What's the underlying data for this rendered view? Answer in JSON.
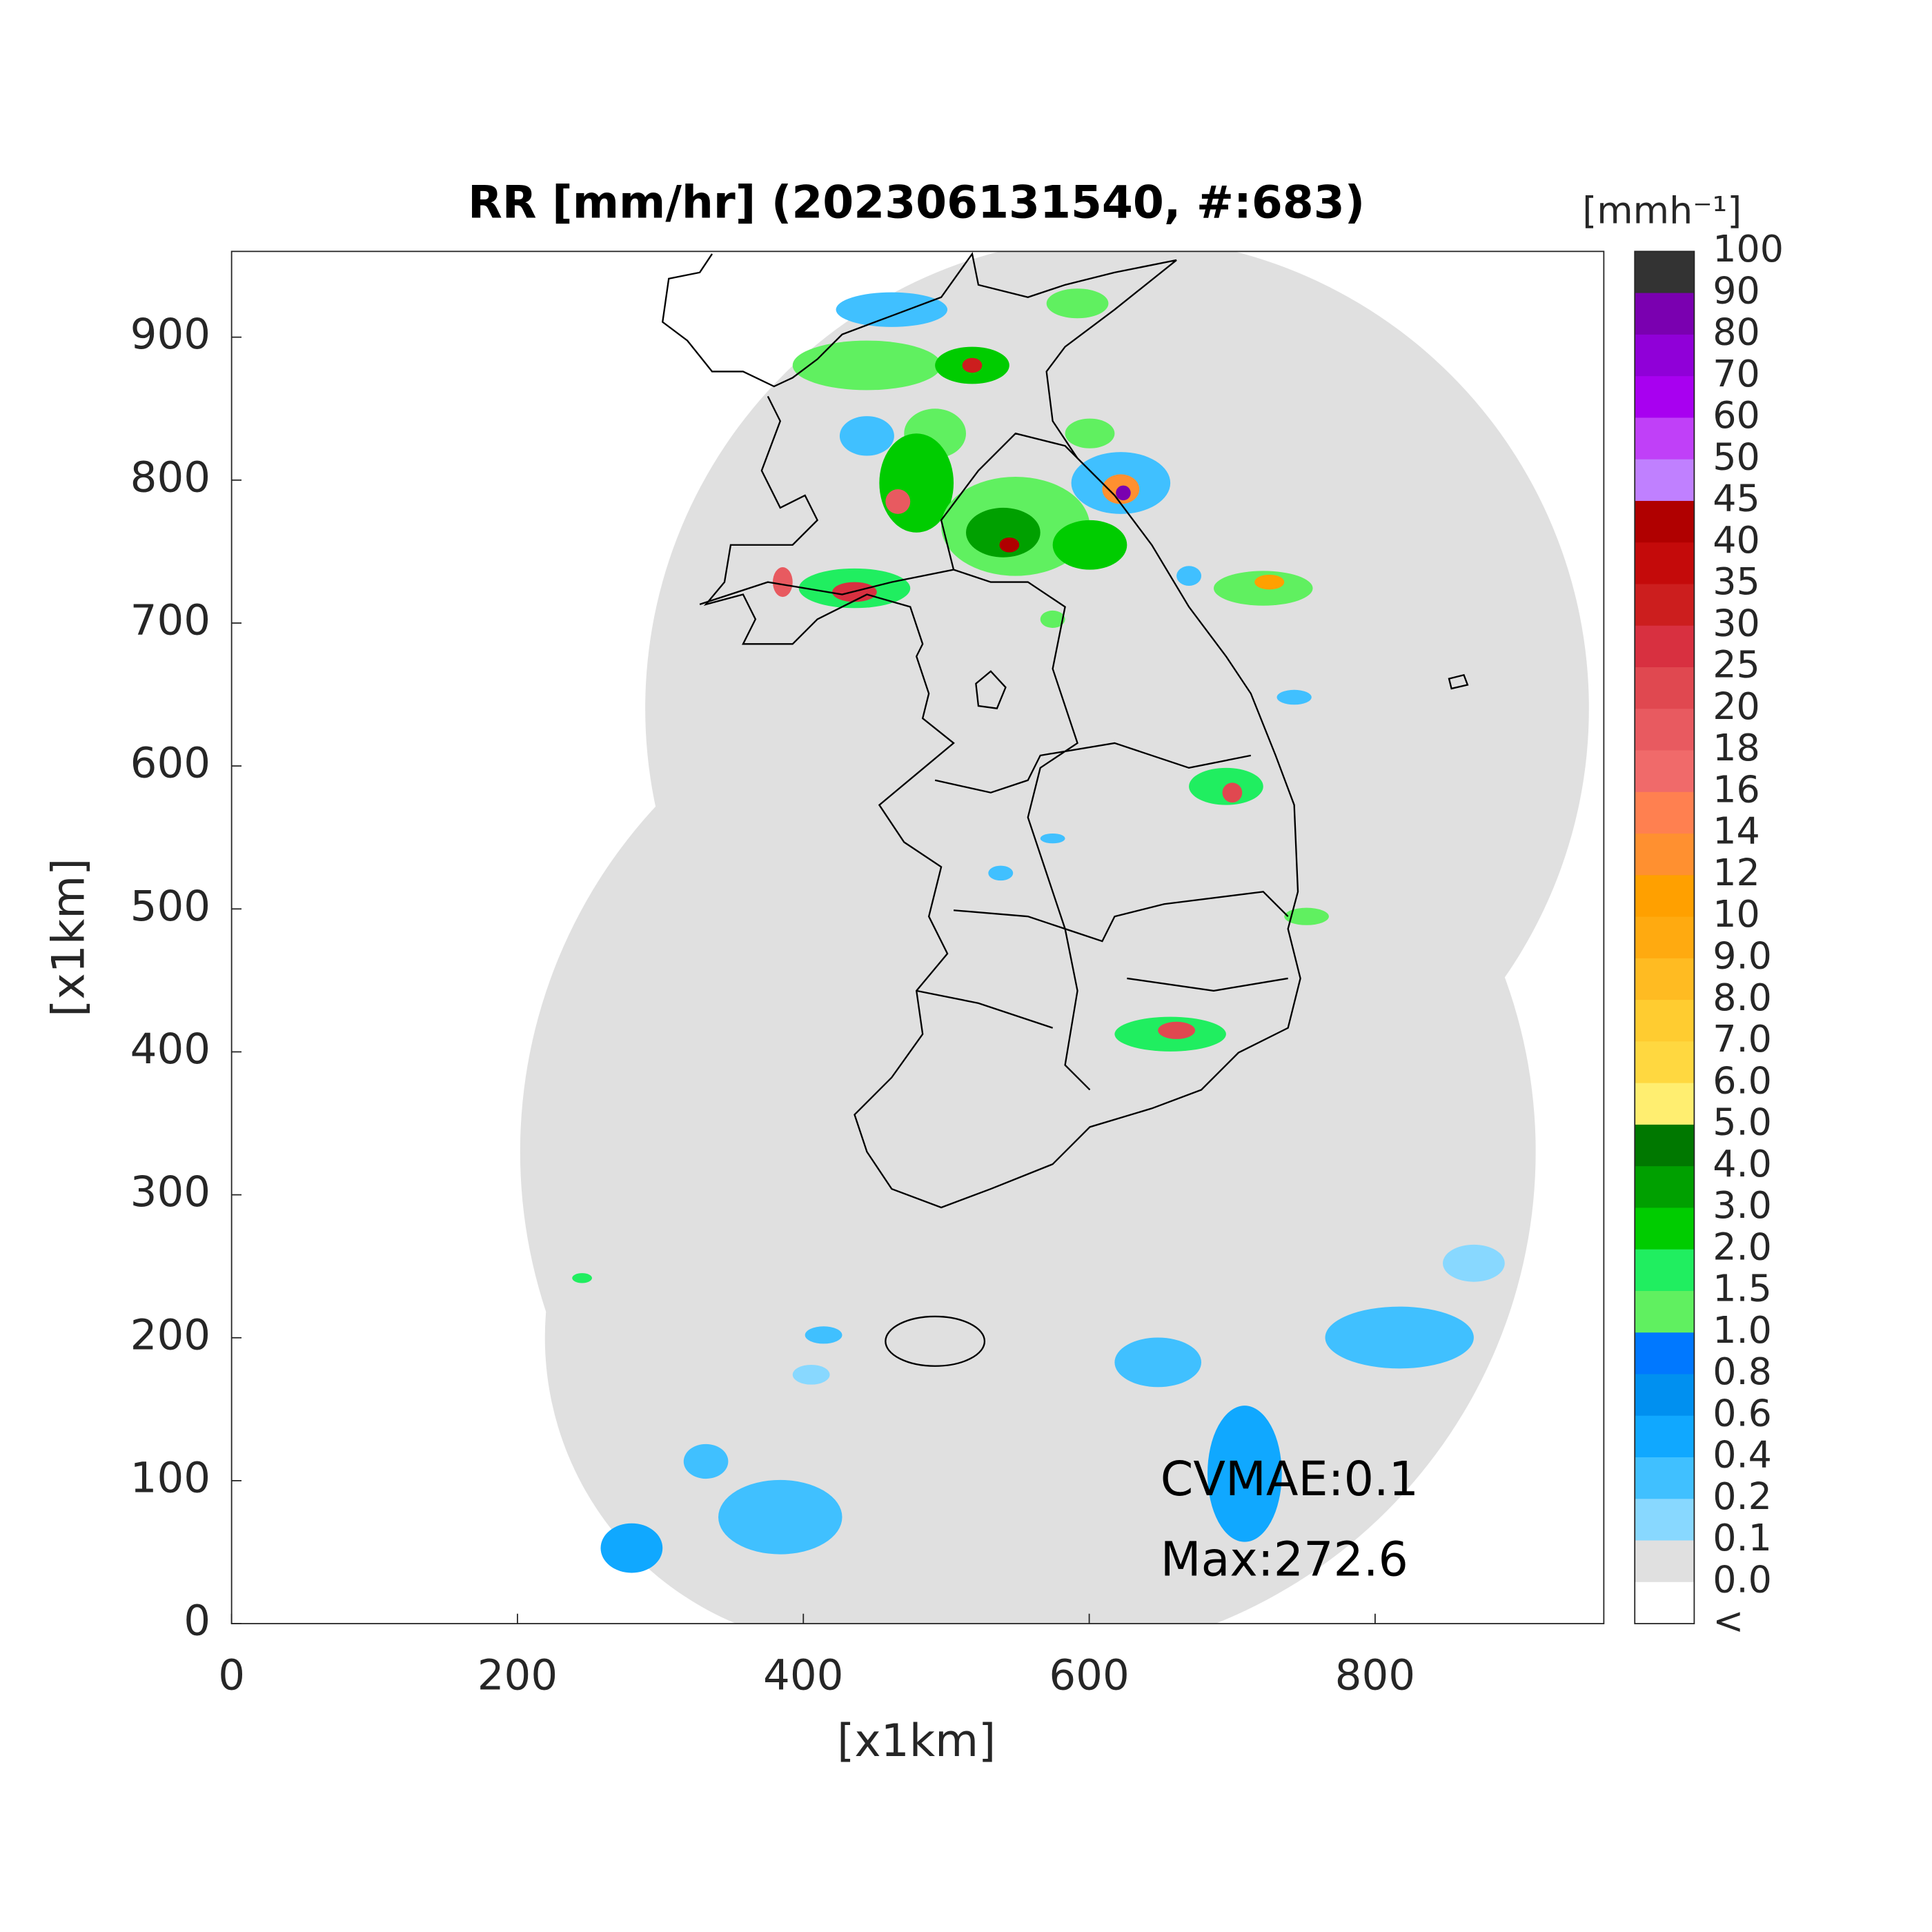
{
  "title": "RR [mm/hr] (202306131540, #:683)",
  "axes": {
    "xlim": [
      0,
      960
    ],
    "ylim": [
      0,
      960
    ],
    "xticks": [
      0,
      200,
      400,
      600,
      800
    ],
    "yticks": [
      0,
      100,
      200,
      300,
      400,
      500,
      600,
      700,
      800,
      900
    ],
    "xlabel": "[x1km]",
    "ylabel": "[x1km]"
  },
  "colorbar": {
    "unit": "[mmh⁻¹]",
    "labels": [
      "100",
      "90",
      "80",
      "70",
      "60",
      "50",
      "45",
      "40",
      "35",
      "30",
      "25",
      "20",
      "18",
      "16",
      "14",
      "12",
      "10",
      "9.0",
      "8.0",
      "7.0",
      "6.0",
      "5.0",
      "4.0",
      "3.0",
      "2.0",
      "1.5",
      "1.0",
      "0.8",
      "0.6",
      "0.4",
      "0.2",
      "0.1",
      "0.0",
      "<"
    ],
    "colors": [
      "#333333",
      "#7a00b0",
      "#9000d8",
      "#a800f0",
      "#c040f8",
      "#c080ff",
      "#b00000",
      "#c40a0a",
      "#cc1e1e",
      "#d83040",
      "#e04850",
      "#e85a60",
      "#f06a6a",
      "#ff8050",
      "#ff9030",
      "#ffa000",
      "#ffaa10",
      "#ffbb22",
      "#ffcc30",
      "#ffd840",
      "#ffee70",
      "#007800",
      "#00a000",
      "#00cc00",
      "#20ee60",
      "#60f060",
      "#0078ff",
      "#0090f0",
      "#10a8ff",
      "#40c0ff",
      "#88d8ff",
      "#e0e0e0",
      "#ffffff"
    ]
  },
  "annotations": [
    "CVMAE:0.1",
    "Max:272.6"
  ]
}
